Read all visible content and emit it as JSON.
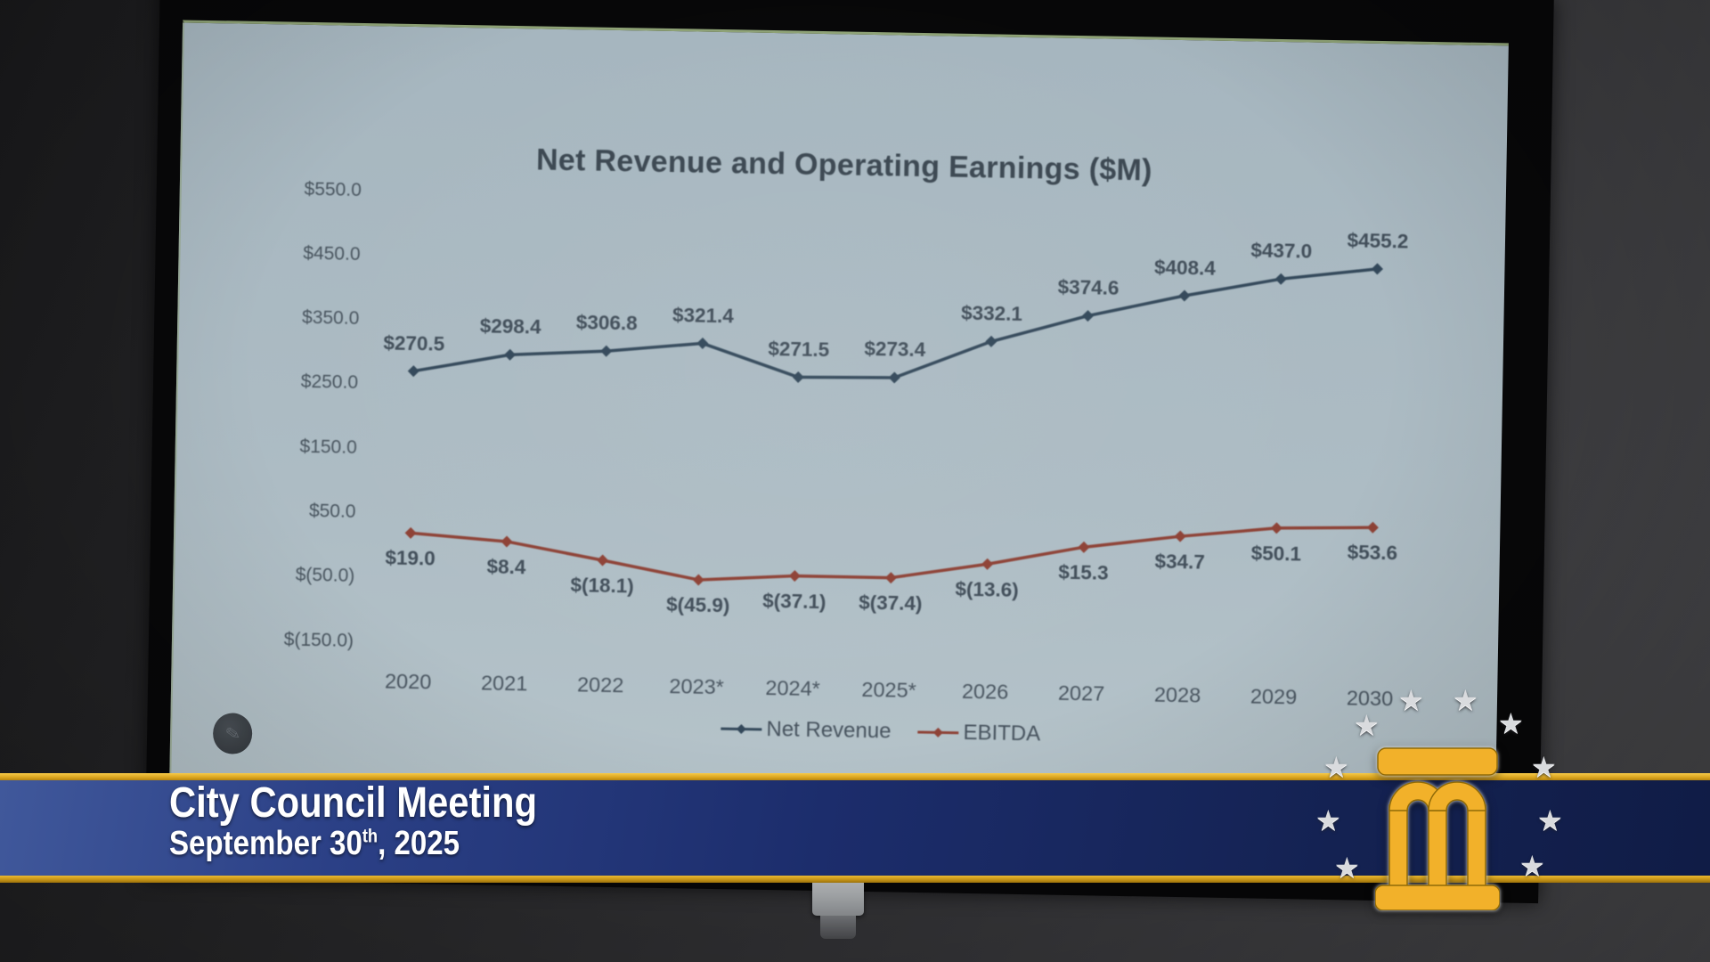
{
  "chart_data": {
    "type": "line",
    "title": "Net Revenue and Operating Earnings ($M)",
    "categories": [
      "2020",
      "2021",
      "2022",
      "2023*",
      "2024*",
      "2025*",
      "2026",
      "2027",
      "2028",
      "2029",
      "2030"
    ],
    "series": [
      {
        "name": "Net Revenue",
        "color": "#33485a",
        "values": [
          270.5,
          298.4,
          306.8,
          321.4,
          271.5,
          273.4,
          332.1,
          374.6,
          408.4,
          437.0,
          455.2
        ],
        "labels": [
          "$270.5",
          "$298.4",
          "$306.8",
          "$321.4",
          "$271.5",
          "$273.4",
          "$332.1",
          "$374.6",
          "$408.4",
          "$437.0",
          "$455.2"
        ],
        "label_position": "above"
      },
      {
        "name": "EBITDA",
        "color": "#8e4236",
        "values": [
          19.0,
          8.4,
          -18.1,
          -45.9,
          -37.1,
          -37.4,
          -13.6,
          15.3,
          34.7,
          50.1,
          53.6
        ],
        "labels": [
          "$19.0",
          "$8.4",
          "$(18.1)",
          "$(45.9)",
          "$(37.1)",
          "$(37.4)",
          "$(13.6)",
          "$15.3",
          "$34.7",
          "$50.1",
          "$53.6"
        ],
        "label_position": "below"
      }
    ],
    "y_ticks": [
      {
        "label": "$550.0",
        "value": 550
      },
      {
        "label": "$450.0",
        "value": 450
      },
      {
        "label": "$350.0",
        "value": 350
      },
      {
        "label": "$250.0",
        "value": 250
      },
      {
        "label": "$150.0",
        "value": 150
      },
      {
        "label": "$50.0",
        "value": 50
      },
      {
        "label": "$(50.0)",
        "value": -50
      },
      {
        "label": "$(150.0)",
        "value": -150
      }
    ],
    "ylim": [
      -150,
      550
    ],
    "grid": false,
    "legend_position": "bottom"
  },
  "banner": {
    "title": "City Council Meeting",
    "date_main": "September 30",
    "date_sup": "th",
    "date_tail": ", 2025",
    "colors": {
      "navy": "#1b2c6b",
      "gold": "#d9a41f",
      "text": "#ffffff"
    }
  },
  "logo": {
    "monogram": "M",
    "gold": "#f2b12a",
    "star_color": "#d9dbde"
  }
}
